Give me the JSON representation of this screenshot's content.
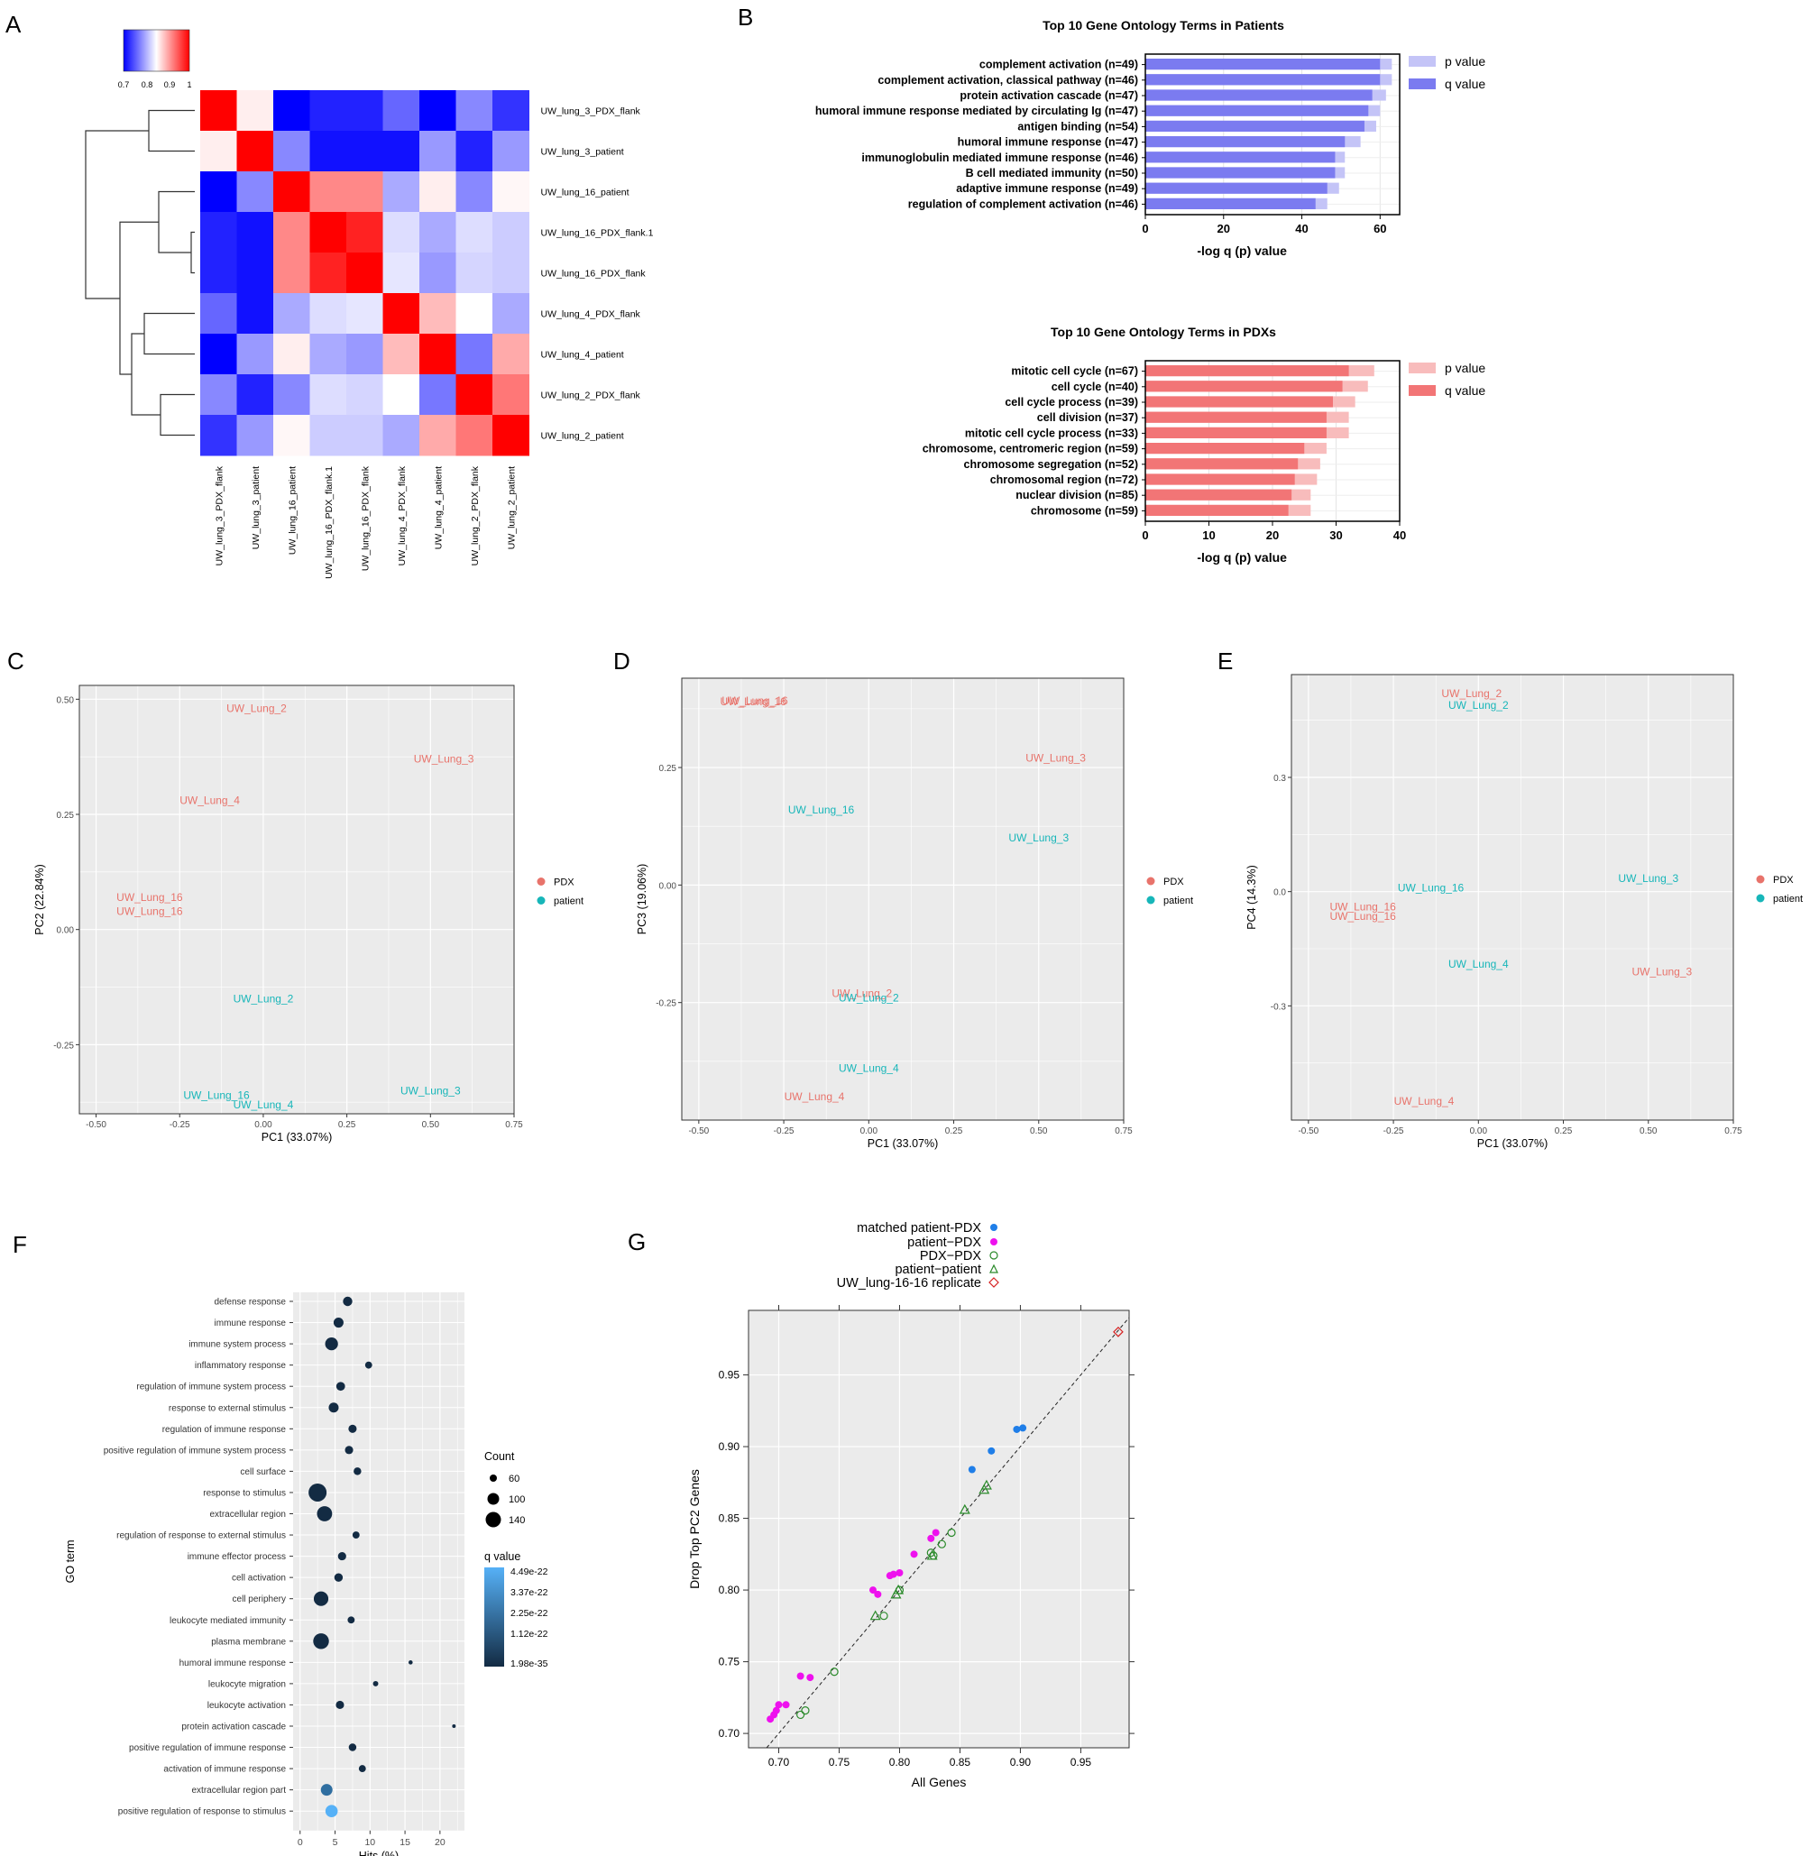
{
  "panel_letters": [
    "A",
    "B",
    "C",
    "D",
    "E",
    "F",
    "G"
  ],
  "colors": {
    "heat_low": "#0000ff",
    "heat_mid": "#ffffff",
    "heat_high": "#ff0000",
    "patients_q": "#7b7bf0",
    "patients_p": "#c4c4f7",
    "pdx_q": "#f27576",
    "pdx_p": "#f8bcbc",
    "pca_pdx": "#e8736b",
    "pca_patient": "#17b6b9",
    "pca_panel": "#ebebeb",
    "dot_fill": "#132b43",
    "dot_fill_light": "#56b1f7",
    "matched": "#1f7ee8",
    "patient_pdx": "#ee11ee",
    "pdx_pdx": "#2a8a2a",
    "pat_pat": "#2a8a2a",
    "replicate": "#d62222"
  },
  "chart_data": [
    {
      "id": "A",
      "type": "heatmap",
      "legend_ticks": [
        "0.7",
        "0.8",
        "0.9",
        "1"
      ],
      "rows": [
        "UW_lung_3_PDX_flank",
        "UW_lung_3_patient",
        "UW_lung_16_patient",
        "UW_lung_16_PDX_flank.1",
        "UW_lung_16_PDX_flank",
        "UW_lung_4_PDX_flank",
        "UW_lung_4_patient",
        "UW_lung_2_PDX_flank",
        "UW_lung_2_patient"
      ],
      "columns": [
        "UW_lung_3_PDX_flank",
        "UW_lung_3_patient",
        "UW_lung_16_patient",
        "UW_lung_16_PDX_flank.1",
        "UW_lung_16_PDX_flank",
        "UW_lung_4_PDX_flank",
        "UW_lung_4_patient",
        "UW_lung_2_PDX_flank",
        "UW_lung_2_patient"
      ],
      "values": [
        [
          1.0,
          0.86,
          0.7,
          0.72,
          0.72,
          0.76,
          0.7,
          0.78,
          0.73
        ],
        [
          0.86,
          1.0,
          0.78,
          0.71,
          0.71,
          0.71,
          0.79,
          0.72,
          0.79
        ],
        [
          0.7,
          0.78,
          1.0,
          0.92,
          0.92,
          0.8,
          0.86,
          0.78,
          0.855
        ],
        [
          0.72,
          0.71,
          0.92,
          1.0,
          0.98,
          0.83,
          0.8,
          0.83,
          0.82
        ],
        [
          0.72,
          0.71,
          0.92,
          0.98,
          1.0,
          0.835,
          0.79,
          0.825,
          0.82
        ],
        [
          0.76,
          0.71,
          0.8,
          0.83,
          0.835,
          1.0,
          0.89,
          0.85,
          0.8
        ],
        [
          0.7,
          0.79,
          0.86,
          0.8,
          0.79,
          0.89,
          1.0,
          0.77,
          0.9
        ],
        [
          0.78,
          0.72,
          0.78,
          0.83,
          0.825,
          0.85,
          0.77,
          1.0,
          0.93
        ],
        [
          0.73,
          0.79,
          0.855,
          0.82,
          0.82,
          0.8,
          0.9,
          0.93,
          1.0
        ]
      ]
    },
    {
      "id": "B1",
      "type": "bar",
      "title": "Top 10 Gene Ontology Terms in Patients",
      "categories": [
        "complement activation (n=49)",
        "complement activation, classical pathway (n=46)",
        "protein activation cascade (n=47)",
        "humoral immune response mediated by circulating Ig (n=47)",
        "antigen binding (n=54)",
        "humoral immune response (n=47)",
        "immunoglobulin mediated immune response (n=46)",
        "B cell mediated immunity (n=50)",
        "adaptive immune response (n=49)",
        "regulation of complement activation (n=46)"
      ],
      "series": [
        {
          "name": "p value",
          "values": [
            63,
            63,
            61.5,
            60,
            59,
            55,
            51,
            51,
            49.5,
            46.5
          ]
        },
        {
          "name": "q value",
          "values": [
            60,
            60,
            58,
            57,
            56,
            51,
            48.5,
            48.5,
            46.5,
            43.5
          ]
        }
      ],
      "xlabel": "-log q (p) value",
      "xlim": [
        0,
        65
      ],
      "xticks": [
        "0",
        "20",
        "40",
        "60"
      ]
    },
    {
      "id": "B2",
      "type": "bar",
      "title": "Top 10 Gene Ontology Terms in PDXs",
      "categories": [
        "mitotic cell cycle (n=67)",
        "cell cycle (n=40)",
        "cell cycle process (n=39)",
        "cell division (n=37)",
        "mitotic cell cycle process (n=33)",
        "chromosome, centromeric region (n=59)",
        "chromosome segregation (n=52)",
        "chromosomal region (n=72)",
        "nuclear division (n=85)",
        "chromosome (n=59)"
      ],
      "series": [
        {
          "name": "p value",
          "values": [
            36,
            35,
            33,
            32,
            32,
            28.5,
            27.5,
            27,
            26,
            26
          ]
        },
        {
          "name": "q value",
          "values": [
            32,
            31,
            29.5,
            28.5,
            28.5,
            25,
            24,
            23.5,
            23,
            22.5
          ]
        }
      ],
      "xlabel": "-log q (p) value",
      "xlim": [
        0,
        40
      ],
      "xticks": [
        "0",
        "10",
        "20",
        "30",
        "40"
      ]
    },
    {
      "id": "C",
      "type": "scatter",
      "xlabel": "PC1 (33.07%)",
      "ylabel": "PC2 (22.84%)",
      "xlim": [
        -0.55,
        0.75
      ],
      "ylim": [
        -0.4,
        0.53
      ],
      "xticks": [
        "-0.50",
        "-0.25",
        "0.00",
        "0.25",
        "0.50",
        "0.75"
      ],
      "yticks": [
        "-0.25",
        "0.00",
        "0.25",
        "0.50"
      ],
      "legend": [
        "PDX",
        "patient"
      ],
      "points": [
        {
          "label": "UW_Lung_2",
          "group": "PDX",
          "x": -0.02,
          "y": 0.48
        },
        {
          "label": "UW_Lung_3",
          "group": "PDX",
          "x": 0.54,
          "y": 0.37
        },
        {
          "label": "UW_Lung_4",
          "group": "PDX",
          "x": -0.16,
          "y": 0.28
        },
        {
          "label": "UW_Lung_16",
          "group": "PDX",
          "x": -0.34,
          "y": 0.07
        },
        {
          "label": "UW_Lung_16",
          "group": "PDX",
          "x": -0.34,
          "y": 0.04
        },
        {
          "label": "UW_Lung_2",
          "group": "patient",
          "x": 0.0,
          "y": -0.15
        },
        {
          "label": "UW_Lung_3",
          "group": "patient",
          "x": 0.5,
          "y": -0.35
        },
        {
          "label": "UW_Lung_16",
          "group": "patient",
          "x": -0.14,
          "y": -0.36
        },
        {
          "label": "UW_Lung_4",
          "group": "patient",
          "x": 0.0,
          "y": -0.38
        }
      ]
    },
    {
      "id": "D",
      "type": "scatter",
      "xlabel": "PC1 (33.07%)",
      "ylabel": "PC3 (19.06%)",
      "xlim": [
        -0.55,
        0.75
      ],
      "ylim": [
        -0.5,
        0.44
      ],
      "xticks": [
        "-0.50",
        "-0.25",
        "0.00",
        "0.25",
        "0.50",
        "0.75"
      ],
      "yticks": [
        "-0.25",
        "0.00",
        "0.25"
      ],
      "legend": [
        "PDX",
        "patient"
      ],
      "points": [
        {
          "label": "UW_Lung_16",
          "group": "PDX",
          "x": -0.34,
          "y": 0.39
        },
        {
          "label": "UW_Lung_16",
          "group": "PDX",
          "x": -0.335,
          "y": 0.392
        },
        {
          "label": "UW_Lung_3",
          "group": "PDX",
          "x": 0.55,
          "y": 0.27
        },
        {
          "label": "UW_Lung_2",
          "group": "PDX",
          "x": -0.02,
          "y": -0.23
        },
        {
          "label": "UW_Lung_4",
          "group": "PDX",
          "x": -0.16,
          "y": -0.45
        },
        {
          "label": "UW_Lung_16",
          "group": "patient",
          "x": -0.14,
          "y": 0.16
        },
        {
          "label": "UW_Lung_3",
          "group": "patient",
          "x": 0.5,
          "y": 0.1
        },
        {
          "label": "UW_Lung_2",
          "group": "patient",
          "x": 0.0,
          "y": -0.24
        },
        {
          "label": "UW_Lung_4",
          "group": "patient",
          "x": 0.0,
          "y": -0.39
        }
      ]
    },
    {
      "id": "E",
      "type": "scatter",
      "xlabel": "PC1 (33.07%)",
      "ylabel": "PC4 (14.3%)",
      "xlim": [
        -0.55,
        0.75
      ],
      "ylim": [
        -0.6,
        0.57
      ],
      "xticks": [
        "-0.50",
        "-0.25",
        "0.00",
        "0.25",
        "0.50",
        "0.75"
      ],
      "yticks": [
        "-0.3",
        "0.0",
        "0.3"
      ],
      "legend": [
        "PDX",
        "patient"
      ],
      "points": [
        {
          "label": "UW_Lung_2",
          "group": "PDX",
          "x": -0.02,
          "y": 0.52
        },
        {
          "label": "UW_Lung_16",
          "group": "PDX",
          "x": -0.34,
          "y": -0.04
        },
        {
          "label": "UW_Lung_16",
          "group": "PDX",
          "x": -0.34,
          "y": -0.065
        },
        {
          "label": "UW_Lung_3",
          "group": "PDX",
          "x": 0.54,
          "y": -0.21
        },
        {
          "label": "UW_Lung_4",
          "group": "PDX",
          "x": -0.16,
          "y": -0.55
        },
        {
          "label": "UW_Lung_2",
          "group": "patient",
          "x": 0.0,
          "y": 0.49
        },
        {
          "label": "UW_Lung_16",
          "group": "patient",
          "x": -0.14,
          "y": 0.01
        },
        {
          "label": "UW_Lung_3",
          "group": "patient",
          "x": 0.5,
          "y": 0.035
        },
        {
          "label": "UW_Lung_4",
          "group": "patient",
          "x": 0.0,
          "y": -0.19
        }
      ]
    },
    {
      "id": "F",
      "type": "scatter",
      "xlabel": "Hits (%)",
      "ylabel": "GO term",
      "xlim": [
        -1,
        23.5
      ],
      "xticks": [
        "0",
        "5",
        "10",
        "15",
        "20"
      ],
      "size_legend_title": "Count",
      "size_legend": [
        "60",
        "100",
        "140"
      ],
      "color_legend_title": "q value",
      "color_legend": [
        "4.49e-22",
        "3.37e-22",
        "2.25e-22",
        "1.12e-22",
        "1.98e-35"
      ],
      "terms": [
        "defense response",
        "immune response",
        "immune system process",
        "inflammatory response",
        "regulation of immune system process",
        "response to external stimulus",
        "regulation of immune response",
        "positive regulation of immune system process",
        "cell surface",
        "response to stimulus",
        "extracellular region",
        "regulation of response to external stimulus",
        "immune effector process",
        "cell activation",
        "cell periphery",
        "leukocyte mediated immunity",
        "plasma membrane",
        "humoral immune response",
        "leukocyte migration",
        "leukocyte activation",
        "protein activation cascade",
        "positive regulation of immune response",
        "activation of immune response",
        "extracellular region part",
        "positive regulation of response to stimulus"
      ],
      "hits": [
        6.8,
        5.5,
        4.5,
        9.8,
        5.8,
        4.8,
        7.5,
        7.0,
        8.2,
        2.5,
        3.5,
        8.0,
        6.0,
        5.5,
        3.0,
        7.3,
        3.0,
        15.8,
        10.8,
        5.7,
        22.0,
        7.5,
        8.9,
        3.8,
        4.5
      ],
      "counts": [
        70,
        75,
        100,
        50,
        65,
        75,
        60,
        60,
        55,
        145,
        120,
        50,
        60,
        62,
        115,
        50,
        125,
        25,
        35,
        60,
        20,
        55,
        50,
        90,
        95
      ],
      "qshade": [
        0,
        0,
        0,
        0,
        0,
        0,
        0,
        0,
        0,
        0,
        0,
        0,
        0,
        0,
        0,
        0,
        0,
        0,
        0,
        0,
        0,
        0,
        0,
        0.5,
        1
      ]
    },
    {
      "id": "G",
      "type": "scatter",
      "xlabel": "All Genes",
      "ylabel": "Drop Top PC2 Genes",
      "xlim": [
        0.675,
        0.99
      ],
      "ylim": [
        0.69,
        0.995
      ],
      "xticks": [
        "0.70",
        "0.75",
        "0.80",
        "0.85",
        "0.90",
        "0.95"
      ],
      "yticks": [
        "0.70",
        "0.75",
        "0.80",
        "0.85",
        "0.90",
        "0.95"
      ],
      "legend": [
        "matched patient-PDX",
        "patient−PDX",
        "PDX−PDX",
        "patient−patient",
        "UW_lung-16-16 replicate"
      ],
      "series": [
        {
          "name": "matched patient-PDX",
          "points": [
            [
              0.897,
              0.912
            ],
            [
              0.902,
              0.913
            ],
            [
              0.876,
              0.897
            ],
            [
              0.86,
              0.884
            ]
          ]
        },
        {
          "name": "patient−PDX",
          "points": [
            [
              0.826,
              0.836
            ],
            [
              0.83,
              0.84
            ],
            [
              0.812,
              0.825
            ],
            [
              0.795,
              0.811
            ],
            [
              0.8,
              0.812
            ],
            [
              0.792,
              0.81
            ],
            [
              0.778,
              0.8
            ],
            [
              0.782,
              0.797
            ],
            [
              0.718,
              0.74
            ],
            [
              0.726,
              0.739
            ],
            [
              0.7,
              0.72
            ],
            [
              0.706,
              0.72
            ],
            [
              0.696,
              0.713
            ],
            [
              0.693,
              0.71
            ],
            [
              0.698,
              0.716
            ]
          ]
        },
        {
          "name": "PDX−PDX",
          "points": [
            [
              0.843,
              0.84
            ],
            [
              0.835,
              0.832
            ],
            [
              0.826,
              0.826
            ],
            [
              0.828,
              0.824
            ],
            [
              0.8,
              0.8
            ],
            [
              0.787,
              0.782
            ],
            [
              0.746,
              0.743
            ],
            [
              0.722,
              0.716
            ],
            [
              0.718,
              0.713
            ]
          ]
        },
        {
          "name": "patient−patient",
          "points": [
            [
              0.872,
              0.873
            ],
            [
              0.87,
              0.87
            ],
            [
              0.854,
              0.856
            ],
            [
              0.827,
              0.824
            ],
            [
              0.799,
              0.8
            ],
            [
              0.797,
              0.797
            ],
            [
              0.78,
              0.782
            ]
          ]
        },
        {
          "name": "UW_lung-16-16 replicate",
          "points": [
            [
              0.981,
              0.98
            ]
          ]
        }
      ]
    }
  ]
}
